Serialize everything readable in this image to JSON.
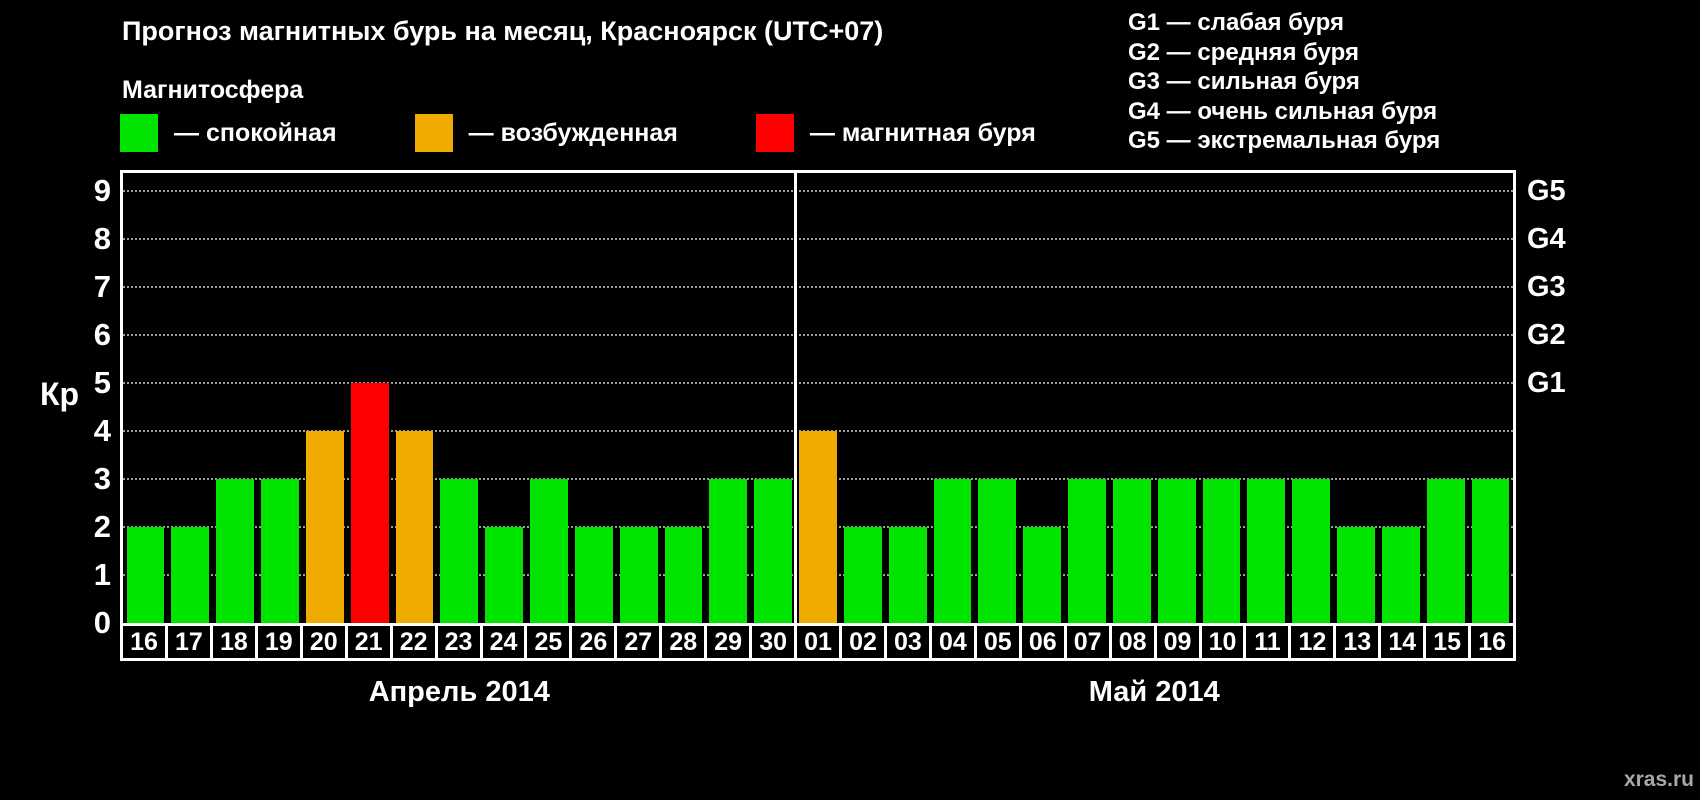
{
  "header": {
    "title": "Прогноз магнитных бурь на месяц, Красноярск (UTC+07)"
  },
  "magnetosphere_legend": {
    "title": "Магнитосфера",
    "items": [
      {
        "name": "quiet",
        "label": "— спокойная",
        "color": "#00e400"
      },
      {
        "name": "excited",
        "label": "— возбужденная",
        "color": "#f0ab00"
      },
      {
        "name": "storm",
        "label": "— магнитная буря",
        "color": "#ff0000"
      }
    ]
  },
  "g_scale_legend": {
    "lines": [
      "G1 — слабая буря",
      "G2 — средняя буря",
      "G3 — сильная буря",
      "G4 — очень сильная буря",
      "G5 — экстремальная буря"
    ]
  },
  "chart_data": {
    "type": "bar",
    "title": "Прогноз магнитных бурь на месяц, Красноярск (UTC+07)",
    "ylabel": "Кр",
    "ylim": [
      0,
      9
    ],
    "y_ticks": [
      0,
      1,
      2,
      3,
      4,
      5,
      6,
      7,
      8,
      9
    ],
    "grid": "dotted-horizontal",
    "right_axis": [
      {
        "label": "G1",
        "kp": 5
      },
      {
        "label": "G2",
        "kp": 6
      },
      {
        "label": "G3",
        "kp": 7
      },
      {
        "label": "G4",
        "kp": 8
      },
      {
        "label": "G5",
        "kp": 9
      }
    ],
    "categories": [
      "16",
      "17",
      "18",
      "19",
      "20",
      "21",
      "22",
      "23",
      "24",
      "25",
      "26",
      "27",
      "28",
      "29",
      "30",
      "01",
      "02",
      "03",
      "04",
      "05",
      "06",
      "07",
      "08",
      "09",
      "10",
      "11",
      "12",
      "13",
      "14",
      "15",
      "16"
    ],
    "values": [
      2,
      2,
      3,
      3,
      4,
      5,
      4,
      3,
      2,
      3,
      2,
      2,
      2,
      3,
      3,
      4,
      2,
      2,
      3,
      3,
      2,
      3,
      3,
      3,
      3,
      3,
      3,
      2,
      2,
      3,
      3
    ],
    "statuses": [
      "quiet",
      "quiet",
      "quiet",
      "quiet",
      "excited",
      "storm",
      "excited",
      "quiet",
      "quiet",
      "quiet",
      "quiet",
      "quiet",
      "quiet",
      "quiet",
      "quiet",
      "excited",
      "quiet",
      "quiet",
      "quiet",
      "quiet",
      "quiet",
      "quiet",
      "quiet",
      "quiet",
      "quiet",
      "quiet",
      "quiet",
      "quiet",
      "quiet",
      "quiet",
      "quiet"
    ],
    "status_colors": {
      "quiet": "#00e400",
      "excited": "#f0ab00",
      "storm": "#ff0000"
    },
    "months": [
      {
        "label": "Апрель 2014",
        "days": 15
      },
      {
        "label": "Май 2014",
        "days": 16
      }
    ]
  },
  "watermark": "xras.ru"
}
